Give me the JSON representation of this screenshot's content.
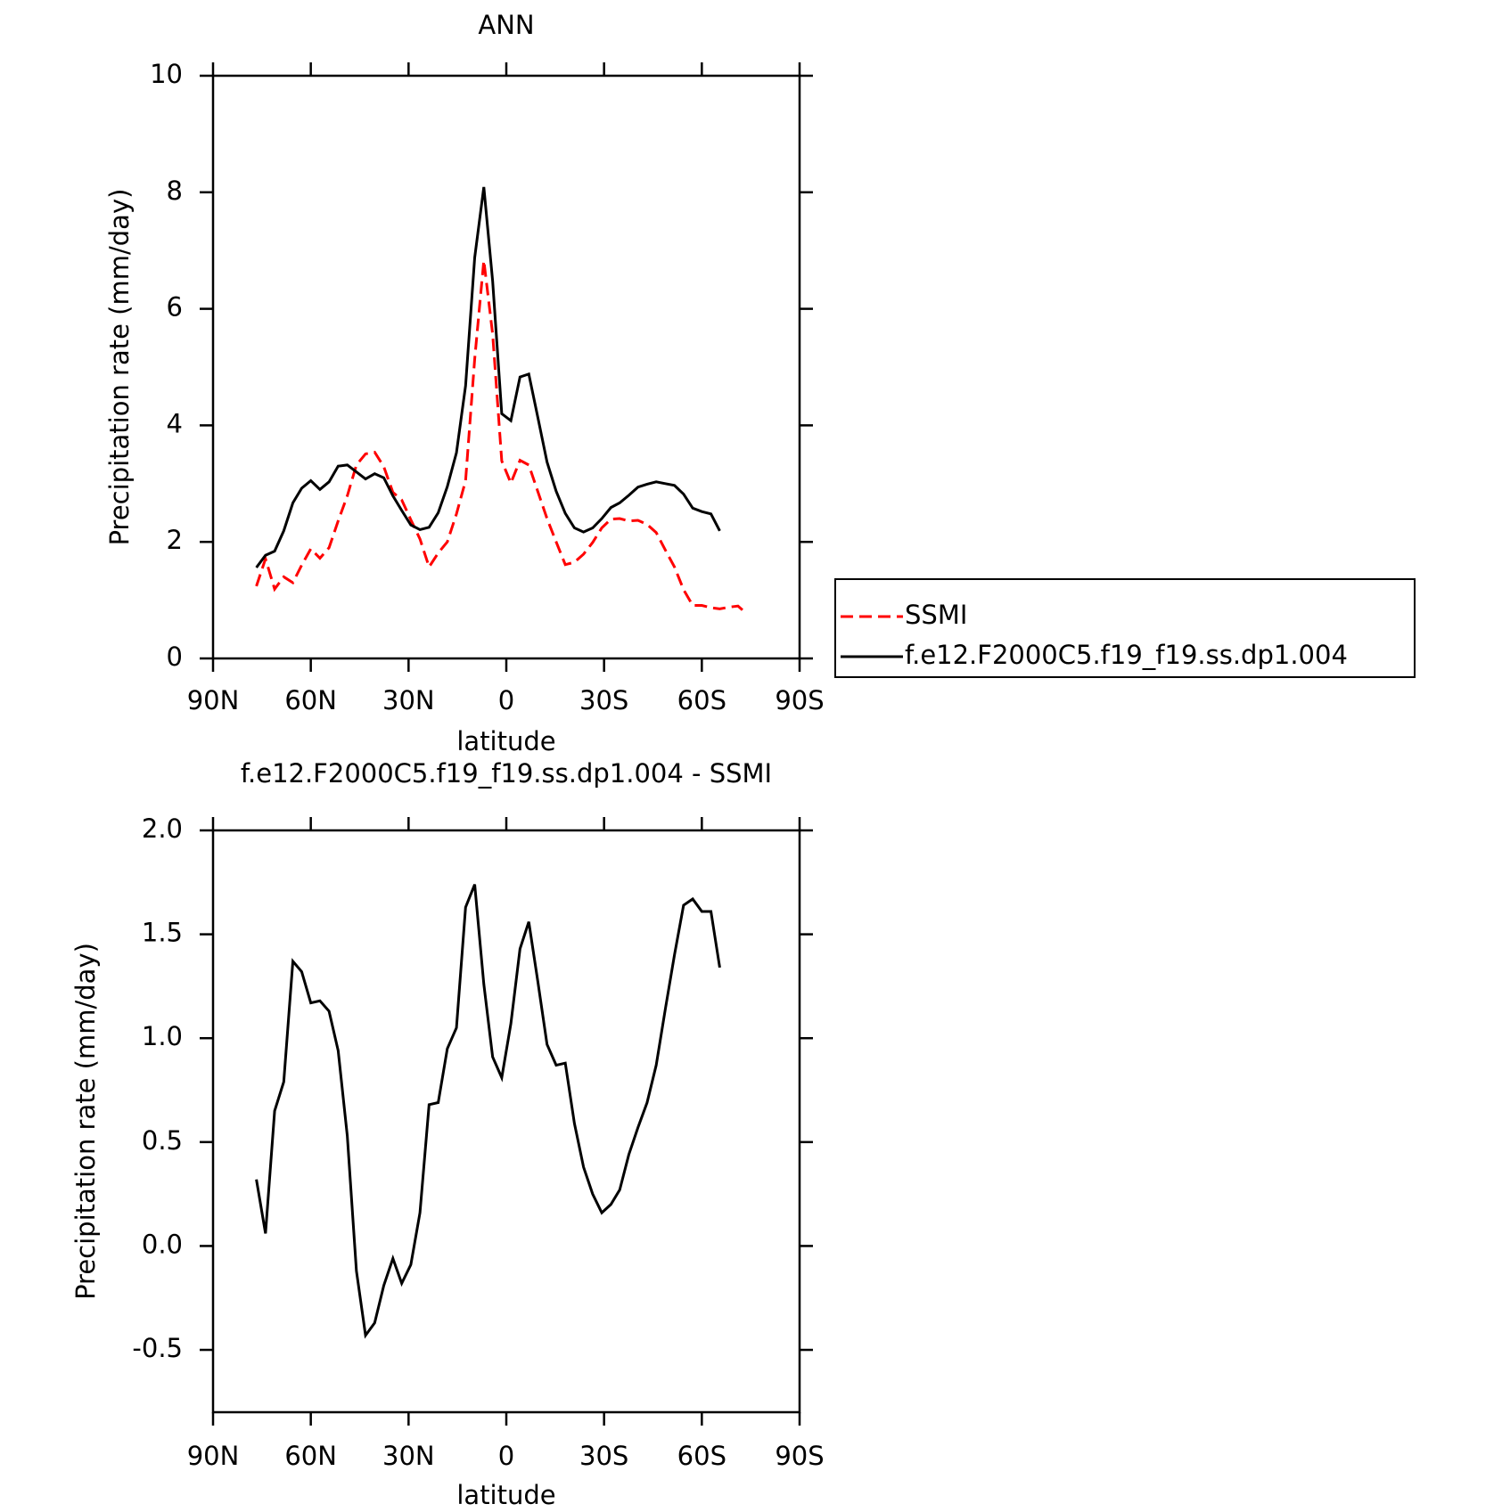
{
  "chart_data": [
    {
      "type": "line",
      "title": "ANN",
      "x_label": "latitude",
      "y_label": "Precipitation rate (mm/day)",
      "xlim": [
        90,
        -90
      ],
      "xticks": [
        {
          "value": 90,
          "label": "90N"
        },
        {
          "value": 60,
          "label": "60N"
        },
        {
          "value": 30,
          "label": "30N"
        },
        0,
        {
          "value": -30,
          "label": "30S"
        },
        {
          "value": -60,
          "label": "60S"
        },
        {
          "value": -90,
          "label": "90S"
        }
      ],
      "ylim": [
        0,
        10
      ],
      "yticks": [
        0,
        2,
        4,
        6,
        8,
        10
      ],
      "legend": "right",
      "series": [
        {
          "name": "SSMI",
          "color": "#ff0000",
          "dashed": true,
          "x": [
            76.7,
            73.9,
            71.1,
            68.3,
            65.5,
            62.8,
            60.0,
            57.2,
            54.4,
            51.6,
            48.8,
            46.0,
            43.2,
            40.4,
            37.6,
            34.8,
            32.1,
            29.3,
            26.5,
            23.7,
            20.9,
            18.1,
            15.3,
            12.5,
            9.7,
            6.9,
            4.2,
            1.4,
            -1.4,
            -4.2,
            -6.9,
            -9.7,
            -12.5,
            -15.3,
            -18.1,
            -20.9,
            -23.7,
            -26.5,
            -29.3,
            -32.1,
            -34.8,
            -37.6,
            -40.4,
            -43.2,
            -46.0,
            -48.8,
            -51.6,
            -54.4,
            -57.2,
            -60.0,
            -62.8,
            -65.5,
            -68.3,
            -71.1,
            -73.9
          ],
          "values": [
            1.24,
            1.71,
            1.19,
            1.4,
            1.3,
            1.6,
            1.88,
            1.72,
            1.9,
            2.36,
            2.79,
            3.32,
            3.51,
            3.54,
            3.29,
            2.85,
            2.72,
            2.38,
            2.05,
            1.57,
            1.81,
            2.0,
            2.48,
            3.05,
            5.14,
            6.83,
            5.57,
            3.39,
            3.01,
            3.4,
            3.32,
            2.86,
            2.4,
            2.0,
            1.61,
            1.65,
            1.79,
            1.99,
            2.24,
            2.39,
            2.4,
            2.36,
            2.37,
            2.3,
            2.16,
            1.86,
            1.57,
            1.18,
            0.91,
            0.91,
            0.87,
            0.85,
            0.88,
            0.9,
            0.76
          ]
        },
        {
          "name": "f.e12.F2000C5.f19_f19.ss.dp1.004",
          "color": "#000000",
          "dashed": false,
          "x": [
            76.7,
            73.9,
            71.1,
            68.3,
            65.5,
            62.8,
            60.0,
            57.2,
            54.4,
            51.6,
            48.8,
            46.0,
            43.2,
            40.4,
            37.6,
            34.8,
            32.1,
            29.3,
            26.5,
            23.7,
            20.9,
            18.1,
            15.3,
            12.5,
            9.7,
            6.9,
            4.2,
            1.4,
            -1.4,
            -4.2,
            -6.9,
            -9.7,
            -12.5,
            -15.3,
            -18.1,
            -20.9,
            -23.7,
            -26.5,
            -29.3,
            -32.1,
            -34.8,
            -37.6,
            -40.4,
            -43.2,
            -46.0,
            -48.8,
            -51.6,
            -54.4,
            -57.2,
            -60.0,
            -62.8,
            -65.5
          ],
          "values": [
            1.56,
            1.77,
            1.84,
            2.19,
            2.67,
            2.92,
            3.05,
            2.9,
            3.03,
            3.3,
            3.32,
            3.2,
            3.08,
            3.17,
            3.1,
            2.79,
            2.54,
            2.29,
            2.21,
            2.25,
            2.5,
            2.95,
            3.53,
            4.68,
            6.88,
            8.09,
            6.48,
            4.2,
            4.08,
            4.83,
            4.88,
            4.13,
            3.37,
            2.87,
            2.49,
            2.24,
            2.17,
            2.24,
            2.4,
            2.59,
            2.67,
            2.8,
            2.94,
            2.99,
            3.03,
            3.0,
            2.97,
            2.82,
            2.58,
            2.52,
            2.48,
            2.19
          ]
        }
      ]
    },
    {
      "type": "line",
      "title": "f.e12.F2000C5.f19_f19.ss.dp1.004 - SSMI",
      "x_label": "latitude",
      "y_label": "Precipitation rate (mm/day)",
      "xlim": [
        90,
        -90
      ],
      "xticks": [
        {
          "value": 90,
          "label": "90N"
        },
        {
          "value": 60,
          "label": "60N"
        },
        {
          "value": 30,
          "label": "30N"
        },
        0,
        {
          "value": -30,
          "label": "30S"
        },
        {
          "value": -60,
          "label": "60S"
        },
        {
          "value": -90,
          "label": "90S"
        }
      ],
      "ylim": [
        -0.8,
        2.0
      ],
      "yticks": [
        -0.5,
        {
          "value": 0,
          "label": "0.0"
        },
        0.5,
        {
          "value": 1,
          "label": "1.0"
        },
        1.5,
        {
          "value": 2,
          "label": "2.0"
        }
      ],
      "series": [
        {
          "color": "#000000",
          "dashed": false,
          "x": [
            76.7,
            73.9,
            71.1,
            68.3,
            65.5,
            62.8,
            60.0,
            57.2,
            54.4,
            51.6,
            48.8,
            46.0,
            43.2,
            40.4,
            37.6,
            34.8,
            32.1,
            29.3,
            26.5,
            23.7,
            20.9,
            18.1,
            15.3,
            12.5,
            9.7,
            6.9,
            4.2,
            1.4,
            -1.4,
            -4.2,
            -6.9,
            -9.7,
            -12.5,
            -15.3,
            -18.1,
            -20.9,
            -23.7,
            -26.5,
            -29.3,
            -32.1,
            -34.8,
            -37.6,
            -40.4,
            -43.2,
            -46.0,
            -48.8,
            -51.6,
            -54.4,
            -57.2,
            -60.0,
            -62.8,
            -65.5
          ],
          "values": [
            0.32,
            0.06,
            0.65,
            0.79,
            1.37,
            1.32,
            1.17,
            1.18,
            1.13,
            0.94,
            0.53,
            -0.12,
            -0.43,
            -0.37,
            -0.19,
            -0.06,
            -0.18,
            -0.09,
            0.16,
            0.68,
            0.69,
            0.95,
            1.05,
            1.63,
            1.74,
            1.26,
            0.91,
            0.81,
            1.07,
            1.43,
            1.56,
            1.27,
            0.97,
            0.87,
            0.88,
            0.59,
            0.38,
            0.25,
            0.16,
            0.2,
            0.27,
            0.44,
            0.57,
            0.69,
            0.87,
            1.14,
            1.4,
            1.64,
            1.67,
            1.61,
            1.61,
            1.34
          ]
        }
      ]
    }
  ]
}
